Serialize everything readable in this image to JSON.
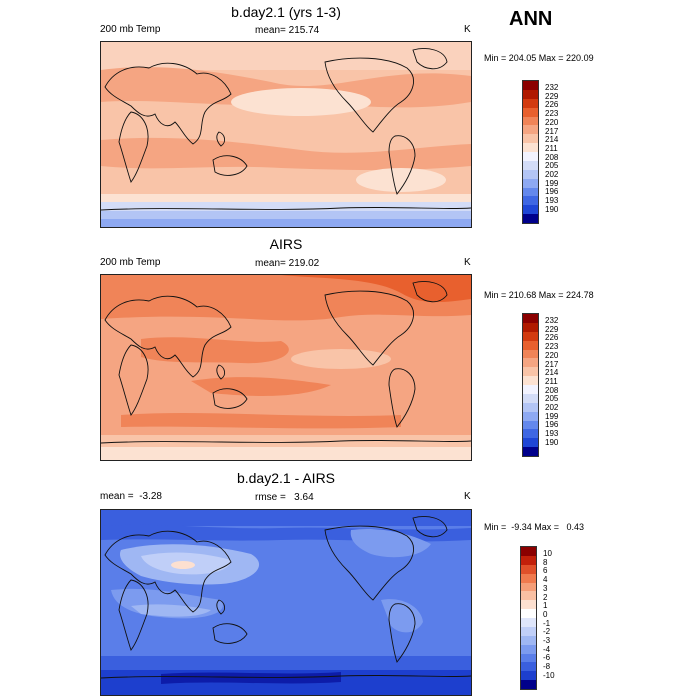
{
  "header": {
    "season": "ANN"
  },
  "panels": [
    {
      "title": "b.day2.1 (yrs 1-3)",
      "left_label": "200 mb Temp",
      "center_label": "mean= 215.74",
      "units": "K",
      "minmax": "Min = 204.05 Max = 220.09"
    },
    {
      "title": "AIRS",
      "left_label": "200 mb Temp",
      "center_label": "mean= 219.02",
      "units": "K",
      "minmax": "Min = 210.68 Max = 224.78"
    },
    {
      "title": "b.day2.1 - AIRS",
      "left_label": "mean =  -3.28",
      "center_label": "rmse =   3.64",
      "units": "K",
      "minmax": "Min =  -9.34 Max =   0.43"
    }
  ],
  "colorbars": {
    "abs_levels": [
      "232",
      "229",
      "226",
      "223",
      "220",
      "217",
      "214",
      "211",
      "208",
      "205",
      "202",
      "199",
      "196",
      "193",
      "190"
    ],
    "abs_colors": [
      "#8b0000",
      "#b01a00",
      "#d23b10",
      "#e8602e",
      "#f08458",
      "#f5a582",
      "#f9c4a8",
      "#fce2d2",
      "#f2f3ff",
      "#d3dcf7",
      "#b3c5f5",
      "#8ea9f2",
      "#6488ec",
      "#3f67e3",
      "#1f46d6",
      "#00008b"
    ],
    "diff_levels": [
      "10",
      "8",
      "6",
      "4",
      "3",
      "2",
      "1",
      "0",
      "-1",
      "-2",
      "-3",
      "-4",
      "-6",
      "-8",
      "-10"
    ],
    "diff_colors": [
      "#8b0000",
      "#c2200a",
      "#e0502a",
      "#f07a4e",
      "#f59e78",
      "#f9c0a3",
      "#fde0d0",
      "#ffffff",
      "#dfe6fb",
      "#c0cff8",
      "#9fb7f3",
      "#7c9bef",
      "#5a7ee9",
      "#3a5fde",
      "#1d3fce",
      "#00008b"
    ]
  }
}
